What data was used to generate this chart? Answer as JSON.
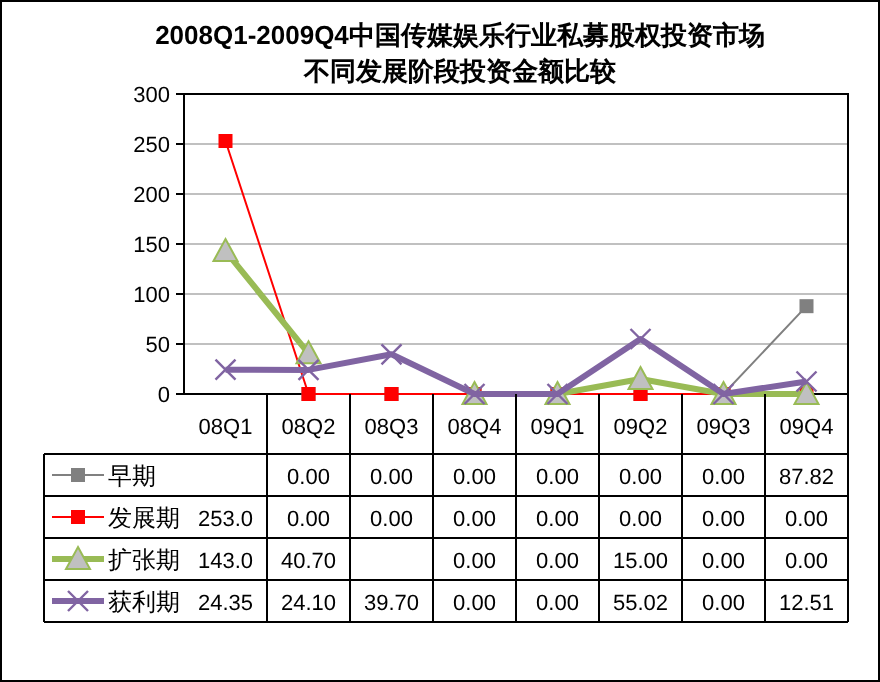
{
  "chart_data": {
    "type": "line",
    "title": "2008Q1-2009Q4中国传媒娱乐行业私募股权投资市场",
    "subtitle": "不同发展阶段投资金额比较",
    "categories": [
      "08Q1",
      "08Q2",
      "08Q3",
      "08Q4",
      "09Q1",
      "09Q2",
      "09Q3",
      "09Q4"
    ],
    "ylim": [
      0,
      300
    ],
    "yticks": [
      0,
      50,
      100,
      150,
      200,
      250,
      300
    ],
    "grid": "y",
    "legend": "bottom",
    "series": [
      {
        "name": "早期",
        "color": "#808080",
        "marker": "square",
        "values": [
          null,
          0,
          0,
          0,
          0,
          0,
          0,
          87.82
        ],
        "value_labels": [
          null,
          "0.00",
          "0.00",
          "0.00",
          "0.00",
          "0.00",
          "0.00",
          "87.82"
        ]
      },
      {
        "name": "发展期",
        "color": "#ff0000",
        "marker": "square",
        "values": [
          253.0,
          0,
          0,
          0,
          0,
          0,
          0,
          0
        ],
        "value_labels": [
          "253.0",
          "0.00",
          "0.00",
          "0.00",
          "0.00",
          "0.00",
          "0.00",
          "0.00"
        ]
      },
      {
        "name": "扩张期",
        "color": "#99bb55",
        "marker": "triangle",
        "values": [
          143.0,
          40.7,
          null,
          0,
          0,
          15.0,
          0,
          0
        ],
        "value_labels": [
          "143.0",
          "40.70",
          null,
          "0.00",
          "0.00",
          "15.00",
          "0.00",
          "0.00"
        ]
      },
      {
        "name": "获利期",
        "color": "#8064a2",
        "marker": "cross",
        "values": [
          24.35,
          24.1,
          39.7,
          0,
          0,
          55.02,
          0,
          12.51
        ],
        "value_labels": [
          "24.35",
          "24.10",
          "39.70",
          "0.00",
          "0.00",
          "55.02",
          "0.00",
          "12.51"
        ]
      }
    ]
  }
}
